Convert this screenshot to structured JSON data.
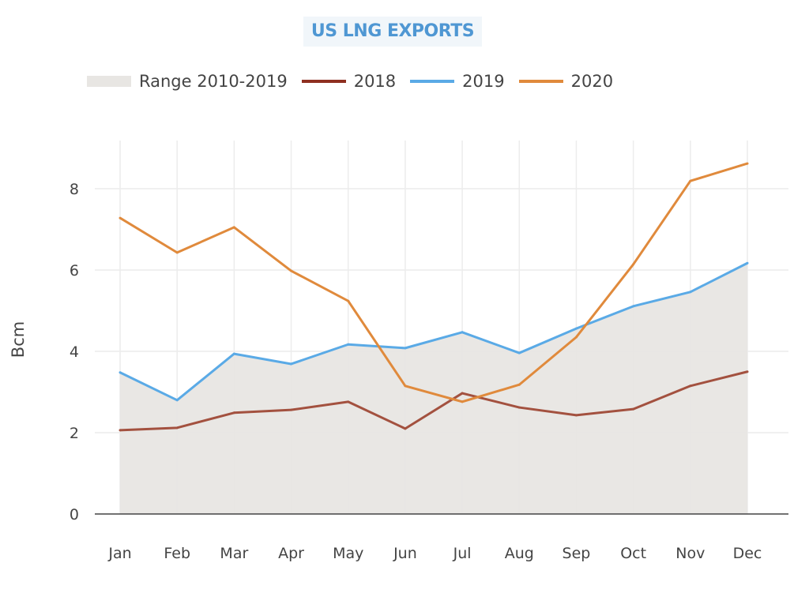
{
  "chart_data": {
    "type": "line",
    "title": "US LNG EXPORTS",
    "xlabel": "",
    "ylabel": "Bcm",
    "ylim": [
      0,
      9
    ],
    "yticks": [
      0,
      2,
      4,
      6,
      8
    ],
    "grid": true,
    "legend_position": "top",
    "categories": [
      "Jan",
      "Feb",
      "Mar",
      "Apr",
      "May",
      "Jun",
      "Jul",
      "Aug",
      "Sep",
      "Oct",
      "Nov",
      "Dec"
    ],
    "range": {
      "name": "Range 2010-2019",
      "color": "#e8e6e3",
      "lower": [
        0,
        0,
        0,
        0,
        0,
        0,
        0,
        0,
        0,
        0,
        0,
        0
      ],
      "upper": [
        3.48,
        2.8,
        3.94,
        3.69,
        4.17,
        4.08,
        4.47,
        3.96,
        4.56,
        5.11,
        5.46,
        6.17
      ]
    },
    "series": [
      {
        "name": "2018",
        "color": "#a3513f",
        "legend_color": "#8e2f20",
        "values": [
          2.06,
          2.12,
          2.49,
          2.56,
          2.76,
          2.1,
          2.97,
          2.62,
          2.43,
          2.58,
          3.15,
          3.5
        ]
      },
      {
        "name": "2019",
        "color": "#5aaae6",
        "legend_color": "#5aaae6",
        "values": [
          3.48,
          2.8,
          3.94,
          3.69,
          4.17,
          4.08,
          4.47,
          3.96,
          4.56,
          5.11,
          5.46,
          6.17
        ]
      },
      {
        "name": "2020",
        "color": "#e08a3c",
        "legend_color": "#e08a3c",
        "values": [
          7.28,
          6.43,
          7.05,
          5.98,
          5.24,
          3.15,
          2.76,
          3.18,
          4.35,
          6.14,
          8.19,
          8.62
        ]
      }
    ]
  }
}
